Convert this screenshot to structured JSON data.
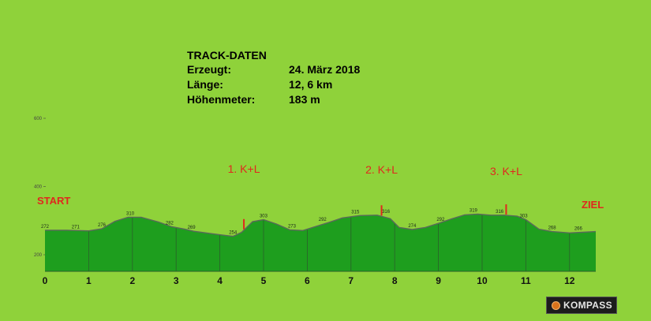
{
  "info": {
    "title": "TRACK-DATEN",
    "rows": [
      {
        "label": "Erzeugt:",
        "value": "24. März 2018"
      },
      {
        "label": "Länge:",
        "value": "12, 6 km"
      },
      {
        "label": "Höhenmeter:",
        "value": "183 m"
      }
    ]
  },
  "brand": {
    "name": "KOMPASS"
  },
  "colors": {
    "background": "#8fd23a",
    "fill": "#1e9e1e",
    "outline": "#5a6a5a",
    "marker": "#e0281e",
    "label": "#e0281e"
  },
  "chart_data": {
    "type": "area",
    "title": "",
    "xlabel": "",
    "ylabel": "",
    "xlim": [
      0,
      12.6
    ],
    "ylim": [
      140,
      600
    ],
    "x_ticks": [
      0,
      1,
      2,
      3,
      4,
      5,
      6,
      7,
      8,
      9,
      10,
      11,
      12
    ],
    "y_ticks": [
      200,
      400,
      600
    ],
    "grid": false,
    "profile": [
      {
        "x": 0.0,
        "y": 272
      },
      {
        "x": 0.5,
        "y": 272
      },
      {
        "x": 1.0,
        "y": 270
      },
      {
        "x": 1.3,
        "y": 276
      },
      {
        "x": 1.6,
        "y": 298
      },
      {
        "x": 1.9,
        "y": 310
      },
      {
        "x": 2.2,
        "y": 310
      },
      {
        "x": 2.6,
        "y": 296
      },
      {
        "x": 2.9,
        "y": 282
      },
      {
        "x": 3.2,
        "y": 275
      },
      {
        "x": 3.4,
        "y": 269
      },
      {
        "x": 3.8,
        "y": 262
      },
      {
        "x": 4.1,
        "y": 257
      },
      {
        "x": 4.3,
        "y": 254
      },
      {
        "x": 4.5,
        "y": 266
      },
      {
        "x": 4.75,
        "y": 297
      },
      {
        "x": 5.0,
        "y": 303
      },
      {
        "x": 5.3,
        "y": 290
      },
      {
        "x": 5.6,
        "y": 273
      },
      {
        "x": 5.9,
        "y": 271
      },
      {
        "x": 6.2,
        "y": 283
      },
      {
        "x": 6.5,
        "y": 295
      },
      {
        "x": 6.8,
        "y": 308
      },
      {
        "x": 7.2,
        "y": 315
      },
      {
        "x": 7.6,
        "y": 316
      },
      {
        "x": 7.9,
        "y": 306
      },
      {
        "x": 8.1,
        "y": 280
      },
      {
        "x": 8.4,
        "y": 274
      },
      {
        "x": 8.7,
        "y": 280
      },
      {
        "x": 9.0,
        "y": 292
      },
      {
        "x": 9.3,
        "y": 305
      },
      {
        "x": 9.6,
        "y": 317
      },
      {
        "x": 9.9,
        "y": 319
      },
      {
        "x": 10.2,
        "y": 316
      },
      {
        "x": 10.5,
        "y": 316
      },
      {
        "x": 10.8,
        "y": 313
      },
      {
        "x": 11.0,
        "y": 303
      },
      {
        "x": 11.3,
        "y": 275
      },
      {
        "x": 11.6,
        "y": 268
      },
      {
        "x": 12.0,
        "y": 264
      },
      {
        "x": 12.3,
        "y": 266
      },
      {
        "x": 12.6,
        "y": 268
      }
    ],
    "elevation_labels": [
      {
        "x": 0.0,
        "y": 272,
        "text": "272"
      },
      {
        "x": 0.7,
        "y": 271,
        "text": "271"
      },
      {
        "x": 1.3,
        "y": 276,
        "text": "276"
      },
      {
        "x": 1.95,
        "y": 310,
        "text": "310"
      },
      {
        "x": 2.85,
        "y": 282,
        "text": "282"
      },
      {
        "x": 3.35,
        "y": 269,
        "text": "269"
      },
      {
        "x": 4.3,
        "y": 254,
        "text": "254"
      },
      {
        "x": 5.0,
        "y": 303,
        "text": "303"
      },
      {
        "x": 5.65,
        "y": 273,
        "text": "273"
      },
      {
        "x": 6.35,
        "y": 292,
        "text": "292"
      },
      {
        "x": 7.1,
        "y": 315,
        "text": "315"
      },
      {
        "x": 7.8,
        "y": 316,
        "text": "316"
      },
      {
        "x": 8.4,
        "y": 274,
        "text": "274"
      },
      {
        "x": 9.05,
        "y": 292,
        "text": "292"
      },
      {
        "x": 9.8,
        "y": 319,
        "text": "319"
      },
      {
        "x": 10.4,
        "y": 316,
        "text": "316"
      },
      {
        "x": 10.95,
        "y": 303,
        "text": "303"
      },
      {
        "x": 11.6,
        "y": 268,
        "text": "268"
      },
      {
        "x": 12.2,
        "y": 266,
        "text": "266"
      }
    ],
    "vertical_lines": [
      1,
      2,
      3,
      4,
      5,
      6,
      7,
      8,
      9,
      10,
      11,
      12
    ],
    "markers": [
      {
        "x": 4.55,
        "label": "1. K+L"
      },
      {
        "x": 7.7,
        "label": "2. K+L"
      },
      {
        "x": 10.55,
        "label": "3. K+L"
      }
    ],
    "start_label": "START",
    "end_label": "ZIEL"
  }
}
